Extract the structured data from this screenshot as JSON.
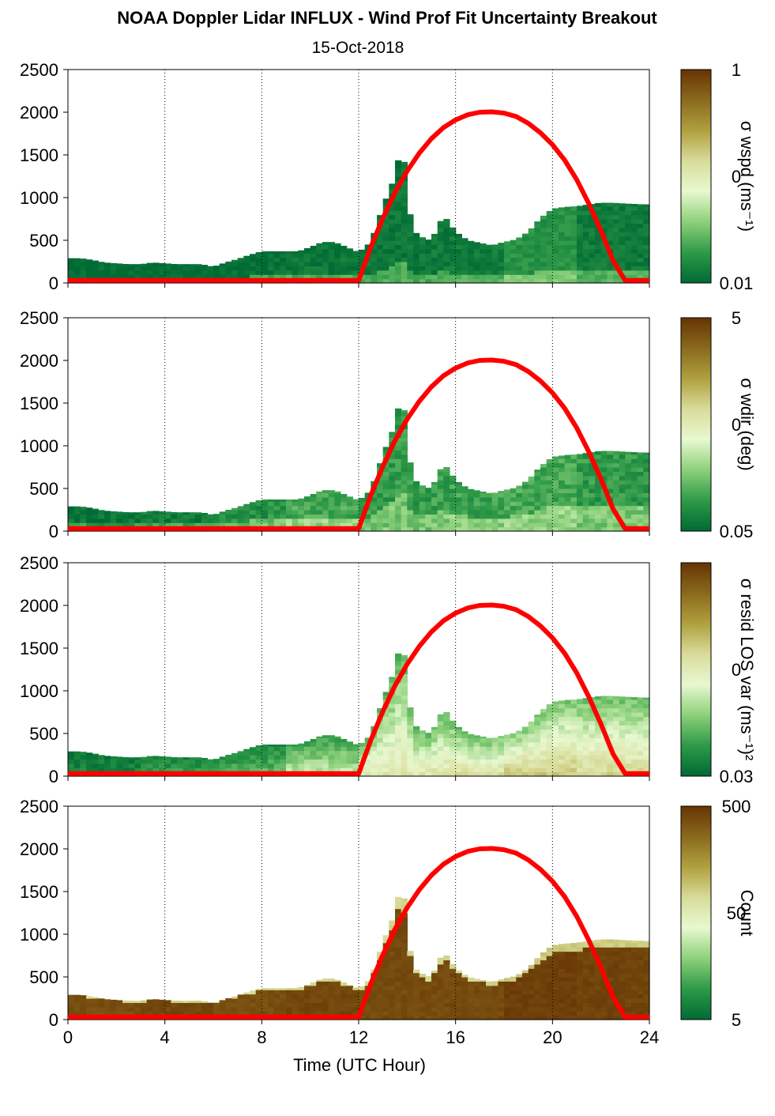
{
  "title": "NOAA Doppler Lidar INFLUX - Wind Prof Fit Uncertainty Breakout",
  "subtitle": "15-Oct-2018",
  "colors": {
    "colormap": [
      "#006a34",
      "#2e9a48",
      "#8cd07a",
      "#e8f8d0",
      "#d8dc9a",
      "#b0a040",
      "#8a6a1c",
      "#663404"
    ],
    "sun_curve": "#ff0000",
    "grid": "#000000"
  },
  "chart_data": {
    "type": "heatmap",
    "xlabel": "Time (UTC Hour)",
    "xlim": [
      0,
      24
    ],
    "x_ticks": [
      0,
      4,
      8,
      12,
      16,
      20,
      24
    ],
    "x_tick_labels": [
      "0",
      "4",
      "8",
      "12",
      "16",
      "20",
      "24"
    ],
    "ylim": [
      0,
      2500
    ],
    "y_ticks": [
      0,
      500,
      1000,
      1500,
      2000,
      2500
    ],
    "y_tick_labels": [
      "0",
      "500",
      "1000",
      "1500",
      "2000",
      "2500"
    ],
    "grid": "vertical dotted at 4-hour intervals",
    "sun_elevation_curve": {
      "color": "red",
      "points": [
        [
          0,
          30
        ],
        [
          12,
          30
        ],
        [
          12.5,
          420
        ],
        [
          13,
          760
        ],
        [
          13.5,
          1060
        ],
        [
          14,
          1310
        ],
        [
          14.5,
          1520
        ],
        [
          15,
          1690
        ],
        [
          15.5,
          1820
        ],
        [
          16,
          1910
        ],
        [
          16.5,
          1970
        ],
        [
          17,
          2000
        ],
        [
          17.5,
          2005
        ],
        [
          18,
          1990
        ],
        [
          18.5,
          1950
        ],
        [
          19,
          1870
        ],
        [
          19.5,
          1760
        ],
        [
          20,
          1620
        ],
        [
          20.5,
          1440
        ],
        [
          21,
          1210
        ],
        [
          21.5,
          930
        ],
        [
          22,
          610
        ],
        [
          22.5,
          260
        ],
        [
          23,
          30
        ],
        [
          24,
          30
        ]
      ]
    },
    "echo_top": [
      [
        0,
        290
      ],
      [
        0.5,
        290
      ],
      [
        1,
        270
      ],
      [
        1.5,
        240
      ],
      [
        2,
        230
      ],
      [
        2.5,
        220
      ],
      [
        3,
        220
      ],
      [
        3.5,
        240
      ],
      [
        4,
        230
      ],
      [
        4.5,
        220
      ],
      [
        5,
        220
      ],
      [
        5.5,
        220
      ],
      [
        6,
        190
      ],
      [
        6.5,
        240
      ],
      [
        7,
        280
      ],
      [
        7.5,
        330
      ],
      [
        8,
        370
      ],
      [
        8.5,
        370
      ],
      [
        9,
        370
      ],
      [
        9.5,
        370
      ],
      [
        10,
        420
      ],
      [
        10.5,
        480
      ],
      [
        11,
        480
      ],
      [
        11.5,
        420
      ],
      [
        12,
        360
      ],
      [
        12.5,
        480
      ],
      [
        13,
        900
      ],
      [
        13.5,
        1250
      ],
      [
        13.8,
        1700
      ],
      [
        14,
        950
      ],
      [
        14.3,
        600
      ],
      [
        14.7,
        520
      ],
      [
        15,
        500
      ],
      [
        15.5,
        800
      ],
      [
        16,
        600
      ],
      [
        16.5,
        500
      ],
      [
        17,
        470
      ],
      [
        17.5,
        440
      ],
      [
        18,
        480
      ],
      [
        18.5,
        510
      ],
      [
        19,
        600
      ],
      [
        19.5,
        760
      ],
      [
        20,
        870
      ],
      [
        20.5,
        890
      ],
      [
        21,
        900
      ],
      [
        21.5,
        920
      ],
      [
        22,
        940
      ],
      [
        22.5,
        940
      ],
      [
        23,
        930
      ],
      [
        23.8,
        920
      ]
    ],
    "panels": [
      {
        "variable": "wspd",
        "colorbar_label": "σ wspd (ms⁻¹)",
        "colorbar_ticks": [
          "1",
          "0",
          "0.01"
        ],
        "colorscale": "log",
        "color_range": [
          0.01,
          1
        ],
        "levels": [
          0,
          0,
          0.02,
          0.04,
          0.04,
          0.05,
          0.12,
          0.05
        ]
      },
      {
        "variable": "wdir",
        "colorbar_label": "σ wdir (deg)",
        "colorbar_ticks": [
          "5",
          "0",
          "0.05"
        ],
        "colorscale": "log",
        "color_range": [
          0.05,
          5
        ],
        "levels": [
          0.02,
          0.05,
          0.12,
          0.18,
          0.14,
          0.16,
          0.18,
          0.14
        ]
      },
      {
        "variable": "resid LOS var",
        "colorbar_label": "σ resid LOS var (ms⁻¹)²",
        "colorbar_ticks": [
          "0",
          "0.03"
        ],
        "colorscale": "log",
        "color_range": [
          0.03,
          3
        ],
        "levels": [
          0.08,
          0.16,
          0.22,
          0.38,
          0.52,
          0.55,
          0.62,
          0.58
        ]
      },
      {
        "variable": "Count",
        "colorbar_label": "Count",
        "colorbar_ticks": [
          "500",
          "50",
          "5"
        ],
        "colorscale": "log",
        "color_range": [
          1,
          500
        ],
        "levels": [
          0.93,
          0.95,
          0.93,
          0.95,
          0.94,
          0.94,
          0.97,
          0.96
        ]
      }
    ]
  }
}
